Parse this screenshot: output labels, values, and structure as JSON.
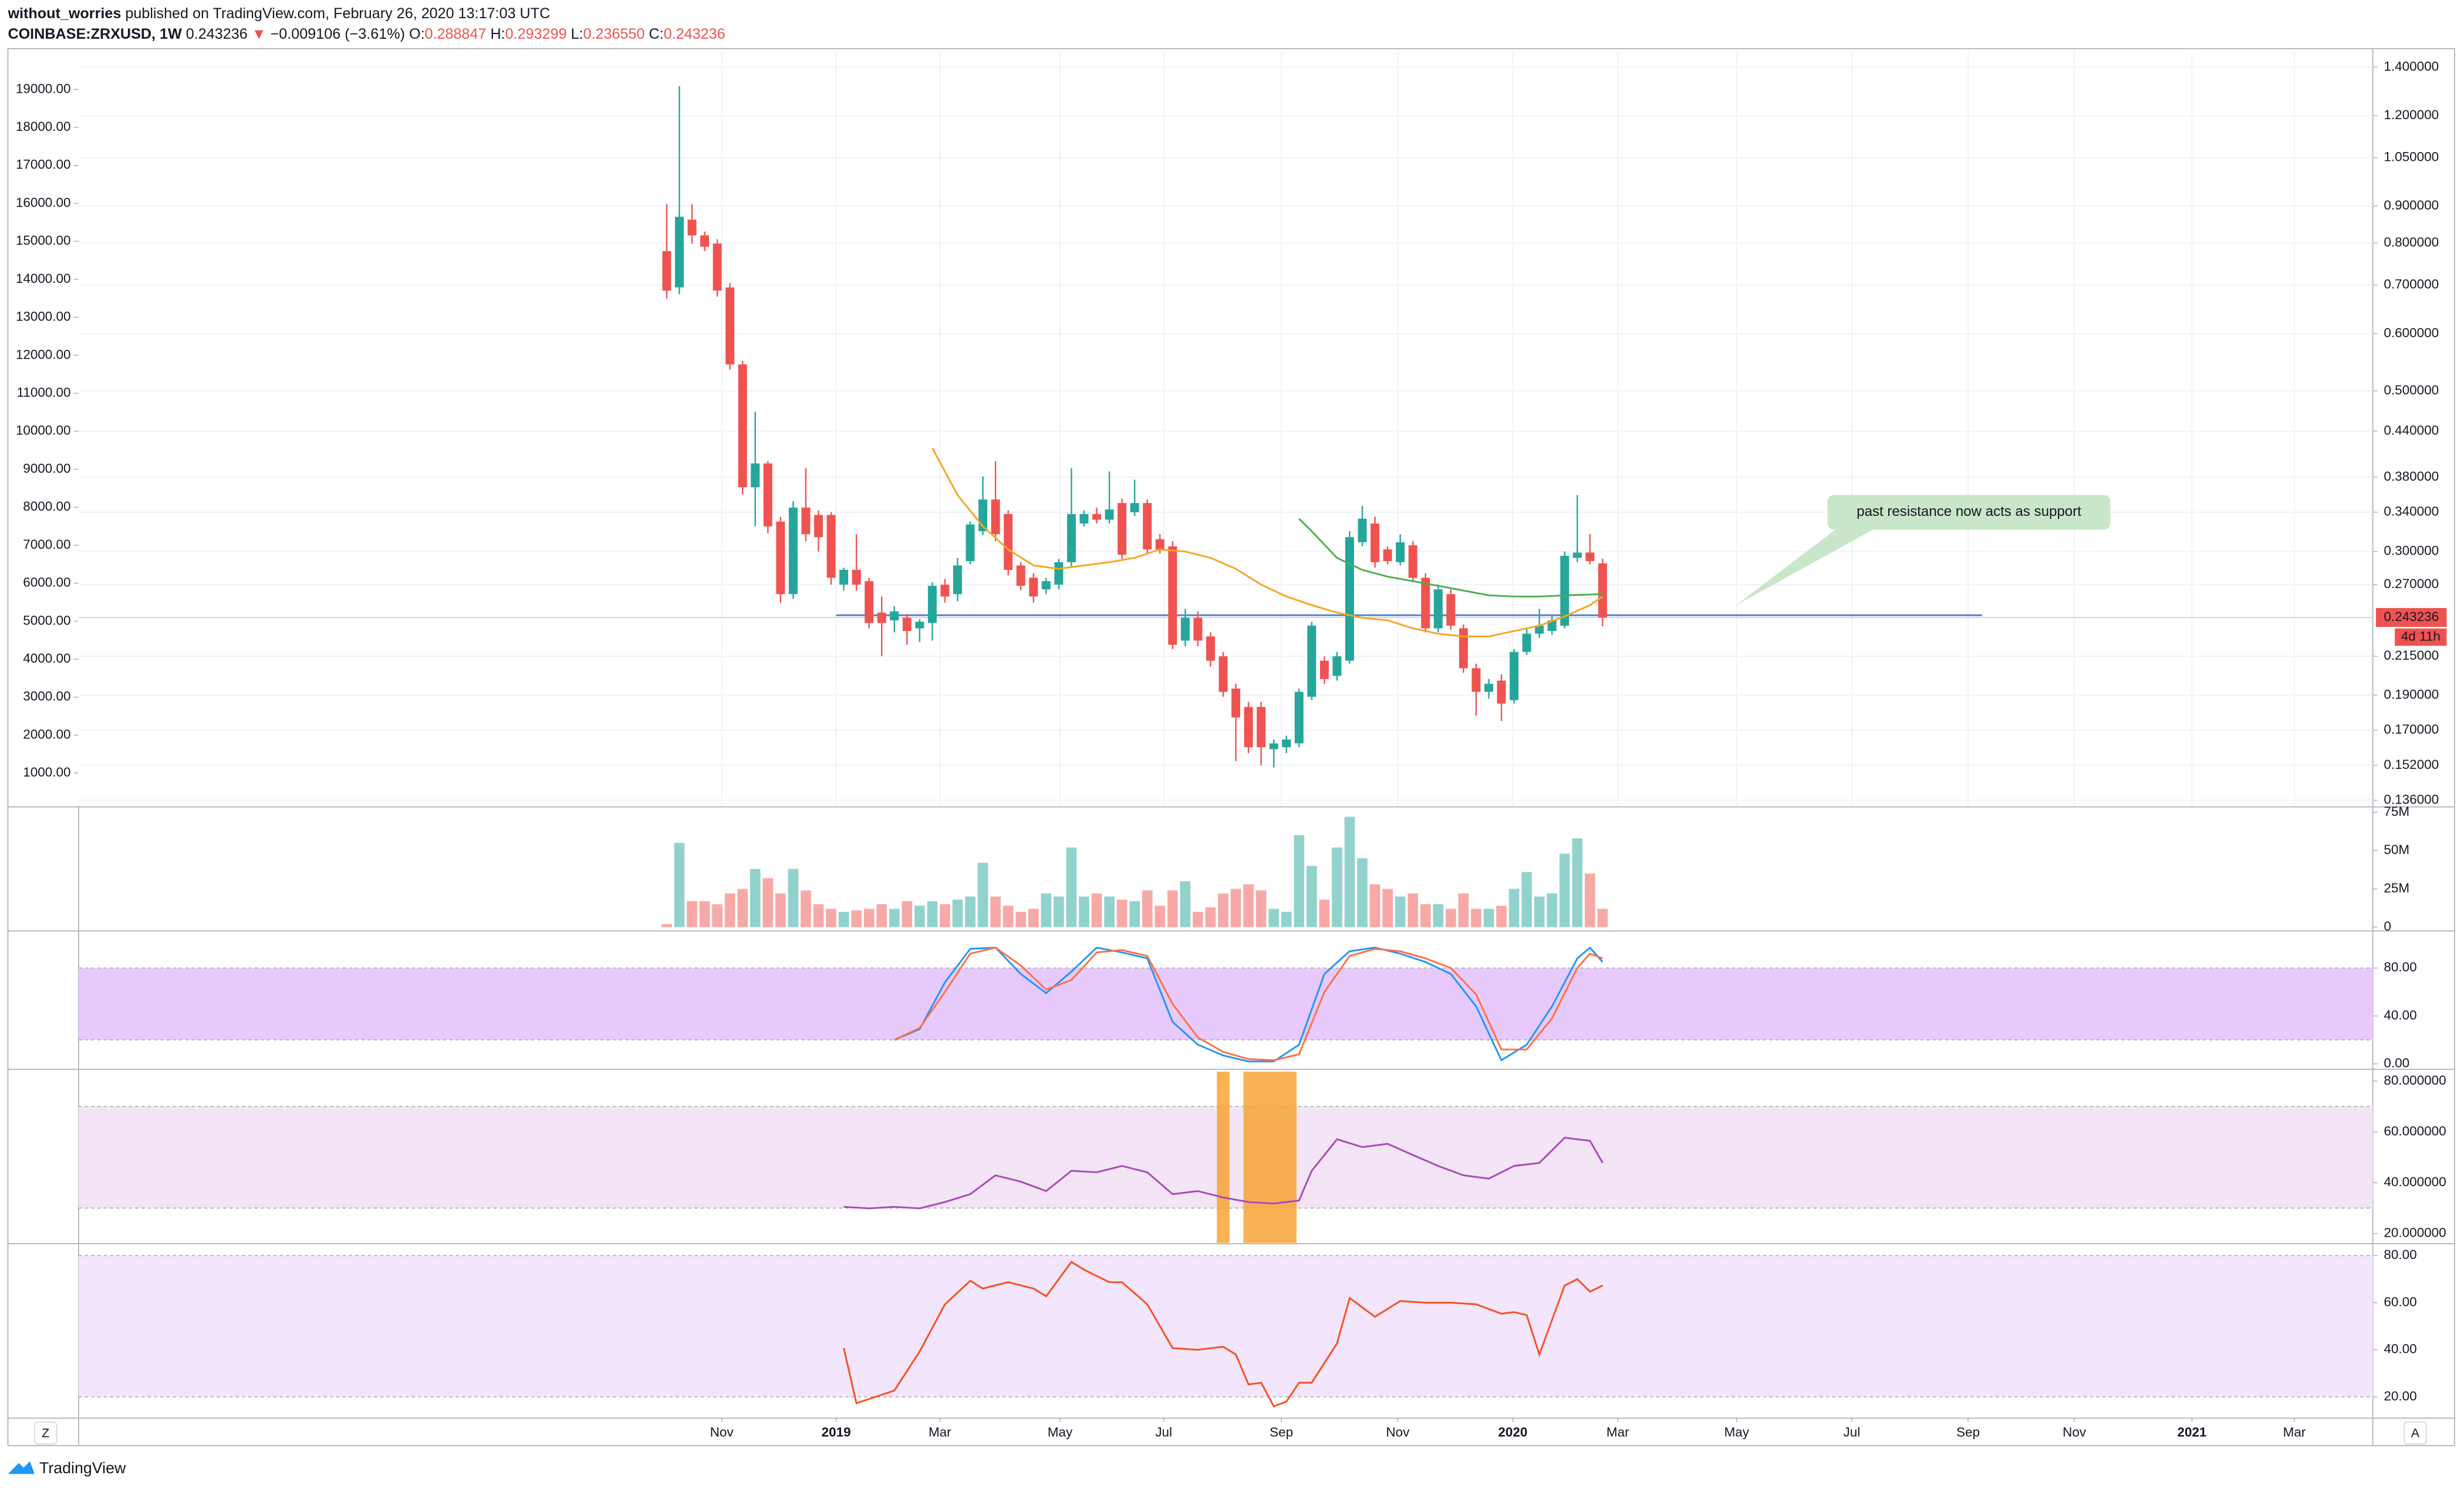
{
  "header": {
    "author": "without_worries",
    "published": "published on TradingView.com, February 26, 2020 13:17:03 UTC",
    "symbol": "COINBASE:ZRXUSD, 1W",
    "price": "0.243236",
    "change": "−0.009106 (−3.61%)",
    "ohlc": [
      {
        "key": "O:",
        "value": "0.288847"
      },
      {
        "key": "H:",
        "value": "0.293299"
      },
      {
        "key": "L:",
        "value": "0.236550"
      },
      {
        "key": "C:",
        "value": "0.243236"
      }
    ]
  },
  "annotation": "past resistance now acts as support",
  "controls": [
    "Z",
    "A"
  ],
  "footer": "TradingView",
  "chart_data": [
    {
      "type": "candlestick",
      "log": true,
      "grid": true,
      "up_color": "#26a69a",
      "down_color": "#ef5350",
      "xlim": [
        -46.5,
        134.9
      ],
      "xticks": [
        {
          "value": 4.35,
          "label": "Nov"
        },
        {
          "value": 13.4,
          "label": "2019"
        },
        {
          "value": 21.6,
          "label": "Mar"
        },
        {
          "value": 31.1,
          "label": "May"
        },
        {
          "value": 39.3,
          "label": "Jul"
        },
        {
          "value": 48.6,
          "label": "Sep"
        },
        {
          "value": 57.8,
          "label": "Nov"
        },
        {
          "value": 66.9,
          "label": "2020"
        },
        {
          "value": 75.2,
          "label": "Mar"
        },
        {
          "value": 84.6,
          "label": "May"
        },
        {
          "value": 93.7,
          "label": "Jul"
        },
        {
          "value": 102.9,
          "label": "Sep"
        },
        {
          "value": 111.3,
          "label": "Nov"
        },
        {
          "value": 120.6,
          "label": "2021"
        },
        {
          "value": 128.7,
          "label": "Mar"
        }
      ],
      "ylim": [
        0.1335,
        1.47
      ],
      "yticks": [
        {
          "value": 1.4,
          "label": "1.400000"
        },
        {
          "value": 1.2,
          "label": "1.200000"
        },
        {
          "value": 1.05,
          "label": "1.050000"
        },
        {
          "value": 0.9,
          "label": "0.900000"
        },
        {
          "value": 0.8,
          "label": "0.800000"
        },
        {
          "value": 0.7,
          "label": "0.700000"
        },
        {
          "value": 0.6,
          "label": "0.600000"
        },
        {
          "value": 0.5,
          "label": "0.500000"
        },
        {
          "value": 0.44,
          "label": "0.440000"
        },
        {
          "value": 0.38,
          "label": "0.380000"
        },
        {
          "value": 0.34,
          "label": "0.340000"
        },
        {
          "value": 0.3,
          "label": "0.300000"
        },
        {
          "value": 0.27,
          "label": "0.270000"
        },
        {
          "value": 0.215,
          "label": "0.215000"
        },
        {
          "value": 0.19,
          "label": "0.190000"
        },
        {
          "value": 0.17,
          "label": "0.170000"
        },
        {
          "value": 0.152,
          "label": "0.152000"
        },
        {
          "value": 0.136,
          "label": "0.136000"
        }
      ],
      "y2lim": [
        131,
        19990
      ],
      "y2ticks": [
        {
          "value": 19000,
          "label": "19000.00"
        },
        {
          "value": 18000,
          "label": "18000.00"
        },
        {
          "value": 17000,
          "label": "17000.00"
        },
        {
          "value": 16000,
          "label": "16000.00"
        },
        {
          "value": 15000,
          "label": "15000.00"
        },
        {
          "value": 14000,
          "label": "14000.00"
        },
        {
          "value": 13000,
          "label": "13000.00"
        },
        {
          "value": 12000,
          "label": "12000.00"
        },
        {
          "value": 11000,
          "label": "11000.00"
        },
        {
          "value": 10000,
          "label": "10000.00"
        },
        {
          "value": 9000,
          "label": "9000.00"
        },
        {
          "value": 8000,
          "label": "8000.00"
        },
        {
          "value": 7000,
          "label": "7000.00"
        },
        {
          "value": 6000,
          "label": "6000.00"
        },
        {
          "value": 5000,
          "label": "5000.00"
        },
        {
          "value": 4000,
          "label": "4000.00"
        },
        {
          "value": 3000,
          "label": "3000.00"
        },
        {
          "value": 2000,
          "label": "2000.00"
        },
        {
          "value": 1000,
          "label": "1000.00"
        }
      ],
      "x": [
        0,
        1,
        2,
        3,
        4,
        5,
        6,
        7,
        8,
        9,
        10,
        11,
        12,
        13,
        14,
        15,
        16,
        17,
        18,
        19,
        20,
        21,
        22,
        23,
        24,
        25,
        26,
        27,
        28,
        29,
        30,
        31,
        32,
        33,
        34,
        35,
        36,
        37,
        38,
        39,
        40,
        41,
        42,
        43,
        44,
        45,
        46,
        47,
        48,
        49,
        50,
        51,
        52,
        53,
        54,
        55,
        56,
        57,
        58,
        59,
        60,
        61,
        62,
        63,
        64,
        65,
        66,
        67,
        68,
        69,
        70,
        71,
        72,
        73,
        74
      ],
      "open": [
        0.78,
        0.695,
        0.862,
        0.82,
        0.799,
        0.695,
        0.544,
        0.368,
        0.397,
        0.33,
        0.262,
        0.345,
        0.337,
        0.337,
        0.27,
        0.283,
        0.273,
        0.247,
        0.241,
        0.243,
        0.235,
        0.239,
        0.27,
        0.262,
        0.291,
        0.32,
        0.354,
        0.338,
        0.287,
        0.276,
        0.266,
        0.27,
        0.29,
        0.328,
        0.338,
        0.332,
        0.35,
        0.34,
        0.35,
        0.312,
        0.305,
        0.226,
        0.243,
        0.229,
        0.215,
        0.194,
        0.183,
        0.183,
        0.16,
        0.161,
        0.163,
        0.189,
        0.212,
        0.202,
        0.212,
        0.309,
        0.328,
        0.302,
        0.29,
        0.306,
        0.276,
        0.235,
        0.262,
        0.235,
        0.207,
        0.192,
        0.199,
        0.187,
        0.218,
        0.231,
        0.233,
        0.237,
        0.294,
        0.299,
        0.288847
      ],
      "high": [
        0.906,
        1.318,
        0.906,
        0.83,
        0.81,
        0.705,
        0.55,
        0.468,
        0.4,
        0.335,
        0.352,
        0.391,
        0.342,
        0.34,
        0.285,
        0.317,
        0.276,
        0.26,
        0.252,
        0.246,
        0.242,
        0.272,
        0.275,
        0.294,
        0.33,
        0.381,
        0.4,
        0.342,
        0.29,
        0.28,
        0.276,
        0.293,
        0.391,
        0.342,
        0.345,
        0.387,
        0.355,
        0.377,
        0.354,
        0.317,
        0.31,
        0.25,
        0.248,
        0.232,
        0.218,
        0.197,
        0.186,
        0.186,
        0.165,
        0.167,
        0.194,
        0.24,
        0.215,
        0.218,
        0.32,
        0.347,
        0.335,
        0.305,
        0.317,
        0.31,
        0.28,
        0.27,
        0.266,
        0.238,
        0.21,
        0.2,
        0.203,
        0.22,
        0.235,
        0.25,
        0.245,
        0.3,
        0.359,
        0.317,
        0.293299
      ],
      "low": [
        0.671,
        0.68,
        0.799,
        0.78,
        0.675,
        0.535,
        0.36,
        0.325,
        0.318,
        0.255,
        0.258,
        0.31,
        0.3,
        0.27,
        0.265,
        0.265,
        0.235,
        0.215,
        0.232,
        0.223,
        0.225,
        0.226,
        0.255,
        0.256,
        0.288,
        0.316,
        0.31,
        0.278,
        0.265,
        0.255,
        0.262,
        0.266,
        0.286,
        0.325,
        0.328,
        0.328,
        0.293,
        0.336,
        0.298,
        0.298,
        0.22,
        0.222,
        0.222,
        0.208,
        0.189,
        0.154,
        0.158,
        0.152,
        0.151,
        0.158,
        0.161,
        0.187,
        0.197,
        0.199,
        0.21,
        0.305,
        0.285,
        0.288,
        0.287,
        0.272,
        0.232,
        0.232,
        0.234,
        0.204,
        0.178,
        0.188,
        0.175,
        0.185,
        0.216,
        0.228,
        0.23,
        0.235,
        0.29,
        0.288,
        0.23655
      ],
      "close": [
        0.688,
        0.87,
        0.82,
        0.791,
        0.688,
        0.544,
        0.368,
        0.397,
        0.325,
        0.262,
        0.345,
        0.317,
        0.314,
        0.276,
        0.283,
        0.27,
        0.239,
        0.239,
        0.248,
        0.233,
        0.24,
        0.269,
        0.26,
        0.287,
        0.327,
        0.354,
        0.317,
        0.283,
        0.269,
        0.26,
        0.273,
        0.29,
        0.338,
        0.338,
        0.332,
        0.343,
        0.297,
        0.35,
        0.302,
        0.302,
        0.223,
        0.243,
        0.226,
        0.212,
        0.192,
        0.177,
        0.161,
        0.161,
        0.163,
        0.165,
        0.192,
        0.237,
        0.2,
        0.215,
        0.314,
        0.333,
        0.29,
        0.291,
        0.309,
        0.276,
        0.235,
        0.266,
        0.237,
        0.207,
        0.192,
        0.197,
        0.185,
        0.218,
        0.231,
        0.237,
        0.241,
        0.296,
        0.299,
        0.291,
        0.243236
      ],
      "series": [
        {
          "color": "#f5a623",
          "x": [
            21,
            23,
            25,
            27,
            29,
            31,
            33,
            35,
            37,
            39,
            41,
            43,
            45,
            47,
            49,
            51,
            53,
            55,
            57,
            59,
            61,
            63,
            65,
            67,
            69,
            71,
            73,
            74
          ],
          "values": [
            0.417,
            0.359,
            0.325,
            0.302,
            0.287,
            0.284,
            0.287,
            0.29,
            0.294,
            0.302,
            0.3,
            0.294,
            0.284,
            0.27,
            0.26,
            0.253,
            0.247,
            0.243,
            0.241,
            0.235,
            0.231,
            0.229,
            0.229,
            0.233,
            0.237,
            0.244,
            0.253,
            0.26
          ]
        },
        {
          "color": "#4caf50",
          "x": [
            50,
            51,
            53,
            55,
            57,
            59,
            61,
            63,
            65,
            67,
            69,
            71,
            74
          ],
          "values": [
            0.333,
            0.32,
            0.294,
            0.283,
            0.277,
            0.273,
            0.269,
            0.265,
            0.261,
            0.26,
            0.26,
            0.261,
            0.262
          ]
        }
      ],
      "hline": {
        "value": 0.245,
        "x": [
          13.4,
          104
        ],
        "color": "#4a7fd8"
      },
      "last_price": 0.243236,
      "countdown": "4d 11h"
    },
    {
      "type": "bar",
      "ylim": [
        -2,
        78
      ],
      "yticks": [
        {
          "value": 75,
          "label": "75M"
        },
        {
          "value": 50,
          "label": "50M"
        },
        {
          "value": 25,
          "label": "25M"
        },
        0
      ],
      "values": [
        2,
        55,
        17,
        17,
        15,
        22,
        25,
        38,
        32,
        22,
        38,
        24,
        15,
        12,
        10,
        11,
        12,
        15,
        12,
        17,
        14,
        17,
        15,
        18,
        20,
        42,
        20,
        14,
        10,
        12,
        22,
        20,
        52,
        20,
        22,
        20,
        18,
        17,
        24,
        14,
        24,
        30,
        10,
        13,
        22,
        25,
        28,
        24,
        12,
        10,
        60,
        40,
        18,
        52,
        72,
        45,
        28,
        25,
        20,
        22,
        15,
        15,
        12,
        22,
        12,
        12,
        14,
        25,
        36,
        20,
        22,
        48,
        58,
        35,
        12
      ]
    },
    {
      "type": "line",
      "ylim": [
        -3.9,
        108.9
      ],
      "yticks": [
        {
          "value": 80,
          "label": "80.00"
        },
        {
          "value": 40,
          "label": "40.00"
        },
        {
          "value": 0,
          "label": "0.00"
        }
      ],
      "band": [
        20,
        80
      ],
      "band_color": "#e8c9fc",
      "series": [
        {
          "color": "#2196f3",
          "x": [
            18,
            20,
            22,
            24,
            26,
            28,
            30,
            32,
            34,
            36,
            38,
            40,
            42,
            44,
            46,
            48,
            50,
            52,
            54,
            56,
            58,
            60,
            62,
            64,
            66,
            68,
            70,
            72,
            73,
            74
          ],
          "values": [
            20,
            29,
            68,
            96,
            97,
            75,
            59,
            77,
            97,
            93,
            88,
            35,
            16,
            7,
            2,
            2,
            16,
            75,
            94,
            97,
            92,
            85,
            75,
            48,
            3,
            16,
            48,
            88,
            97,
            85
          ]
        },
        {
          "color": "#ff7043",
          "x": [
            18,
            20,
            22,
            24,
            26,
            28,
            30,
            32,
            34,
            36,
            38,
            40,
            42,
            44,
            46,
            48,
            50,
            52,
            54,
            56,
            58,
            60,
            62,
            64,
            66,
            68,
            70,
            72,
            73,
            74
          ],
          "values": [
            20,
            30,
            60,
            92,
            97,
            82,
            62,
            70,
            93,
            95,
            90,
            50,
            22,
            10,
            4,
            3,
            8,
            60,
            90,
            96,
            94,
            88,
            80,
            58,
            12,
            12,
            38,
            80,
            92,
            88
          ]
        }
      ]
    },
    {
      "type": "line",
      "ylim": [
        16.3,
        83.7
      ],
      "yticks": [
        {
          "value": 80,
          "label": "80.000000"
        },
        {
          "value": 60,
          "label": "60.000000"
        },
        {
          "value": 40,
          "label": "40.000000"
        },
        {
          "value": 20,
          "label": "20.000000"
        }
      ],
      "band": [
        30,
        70
      ],
      "band_color": "#f3e5f5",
      "highlights": [
        [
          43.5,
          44.5
        ],
        [
          45.6,
          49.8
        ]
      ],
      "highlight_color": "#f7a535",
      "series": [
        {
          "color": "#ab47bc",
          "x": [
            14,
            16,
            18,
            20,
            22,
            24,
            26,
            28,
            30,
            32,
            34,
            36,
            38,
            40,
            42,
            44,
            46,
            48,
            50,
            51,
            53,
            55,
            57,
            59,
            61,
            63,
            65,
            67,
            69,
            71,
            73,
            74
          ],
          "values": [
            30.5,
            29.9,
            30.5,
            29.9,
            32.4,
            35.5,
            42.9,
            40.4,
            36.7,
            44.7,
            44.1,
            46.6,
            44.1,
            35.5,
            36.7,
            34.2,
            32.4,
            31.8,
            33.0,
            44.7,
            57.1,
            54.0,
            55.3,
            50.9,
            46.6,
            42.9,
            41.6,
            46.6,
            47.8,
            57.7,
            56.5,
            47.8
          ]
        }
      ]
    },
    {
      "type": "line",
      "ylim": [
        11.3,
        84.7
      ],
      "yticks": [
        {
          "value": 80,
          "label": "80.00"
        },
        {
          "value": 60,
          "label": "60.00"
        },
        {
          "value": 40,
          "label": "40.00"
        },
        {
          "value": 20,
          "label": "20.00"
        }
      ],
      "band": [
        20,
        80
      ],
      "band_color": "#f3e5fc",
      "series": [
        {
          "color": "#f4511e",
          "x": [
            14,
            15,
            18,
            20,
            22,
            24,
            25,
            27,
            29,
            30,
            32,
            33,
            35,
            36,
            38,
            40,
            42,
            44,
            45,
            46,
            47,
            48,
            49,
            50,
            51,
            53,
            54,
            56,
            58,
            60,
            62,
            64,
            66,
            67,
            68,
            69,
            71,
            72,
            73,
            74
          ],
          "values": [
            40.7,
            17.3,
            22.7,
            39.3,
            59.3,
            69.3,
            66.0,
            68.7,
            66.0,
            62.7,
            77.3,
            74.0,
            68.7,
            68.7,
            59.3,
            40.7,
            40.0,
            41.3,
            38.0,
            25.3,
            26.0,
            16.0,
            18.0,
            26.0,
            26.0,
            42.7,
            62.0,
            54.0,
            60.7,
            60.0,
            60.0,
            59.3,
            55.3,
            56.0,
            54.7,
            38.0,
            67.3,
            70.0,
            64.7,
            67.3
          ]
        }
      ]
    }
  ]
}
